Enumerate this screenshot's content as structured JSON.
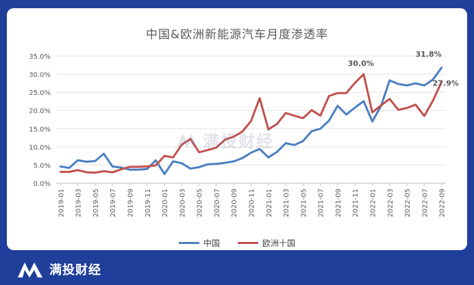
{
  "chart_data": {
    "type": "line",
    "title": "中国&欧洲新能源汽车月度渗透率",
    "xlabel": "",
    "ylabel": "",
    "ylim": [
      0,
      35
    ],
    "yticks": [
      "0.0%",
      "5.0%",
      "10.0%",
      "15.0%",
      "20.0%",
      "25.0%",
      "30.0%",
      "35.0%"
    ],
    "x": [
      "2019-01",
      "2019-02",
      "2019-03",
      "2019-04",
      "2019-05",
      "2019-06",
      "2019-07",
      "2019-08",
      "2019-09",
      "2019-10",
      "2019-11",
      "2019-12",
      "2020-01",
      "2020-02",
      "2020-03",
      "2020-04",
      "2020-05",
      "2020-06",
      "2020-07",
      "2020-08",
      "2020-09",
      "2020-10",
      "2020-11",
      "2020-12",
      "2021-01",
      "2021-02",
      "2021-03",
      "2021-04",
      "2021-05",
      "2021-06",
      "2021-07",
      "2021-08",
      "2021-09",
      "2021-10",
      "2021-11",
      "2021-12",
      "2022-01",
      "2022-02",
      "2022-03",
      "2022-04",
      "2022-05",
      "2022-06",
      "2022-07",
      "2022-08",
      "2022-09"
    ],
    "xtick_labels": [
      "2019-01",
      "2019-03",
      "2019-05",
      "2019-07",
      "2019-09",
      "2019-11",
      "2020-01",
      "2020-03",
      "2020-05",
      "2020-07",
      "2020-09",
      "2020-11",
      "2021-01",
      "2021-03",
      "2021-05",
      "2021-07",
      "2021-09",
      "2021-11",
      "2022-01",
      "2022-03",
      "2022-05",
      "2022-07",
      "2022-09"
    ],
    "series": [
      {
        "name": "中国",
        "color": "#4a7fc1",
        "values": [
          4.6,
          4.2,
          6.3,
          5.9,
          6.1,
          8.1,
          4.6,
          4.3,
          3.7,
          3.7,
          3.9,
          6.3,
          2.5,
          6.0,
          5.5,
          4.0,
          4.4,
          5.2,
          5.3,
          5.6,
          6.0,
          6.9,
          8.4,
          9.4,
          7.1,
          8.6,
          11.0,
          10.5,
          11.6,
          14.3,
          15.0,
          17.2,
          21.3,
          18.9,
          20.8,
          22.6,
          17.0,
          21.2,
          28.3,
          27.3,
          26.9,
          27.5,
          26.9,
          28.5,
          31.8
        ]
      },
      {
        "name": "欧洲十国",
        "color": "#c0504d",
        "values": [
          3.1,
          3.1,
          3.6,
          3.0,
          2.9,
          3.3,
          3.0,
          3.8,
          4.5,
          4.5,
          4.6,
          4.9,
          7.5,
          7.1,
          10.6,
          12.2,
          8.5,
          9.1,
          9.8,
          12.0,
          12.8,
          14.2,
          17.1,
          23.4,
          14.8,
          16.3,
          19.3,
          18.6,
          17.9,
          20.1,
          18.6,
          24.0,
          24.8,
          24.8,
          27.6,
          30.0,
          19.5,
          21.4,
          23.2,
          20.2,
          20.7,
          21.6,
          18.5,
          22.7,
          27.9
        ]
      }
    ],
    "annotations": [
      {
        "label": "30.0%",
        "series": 1,
        "index": 35
      },
      {
        "label": "31.8%",
        "series": 0,
        "index": 44
      },
      {
        "label": "27.9%",
        "series": 1,
        "index": 44
      }
    ],
    "legend_position": "bottom"
  },
  "watermark": {
    "text": "满投财经"
  },
  "footer": {
    "brand": "满投财经",
    "logo_icon": "m-mountain-logo-icon"
  }
}
